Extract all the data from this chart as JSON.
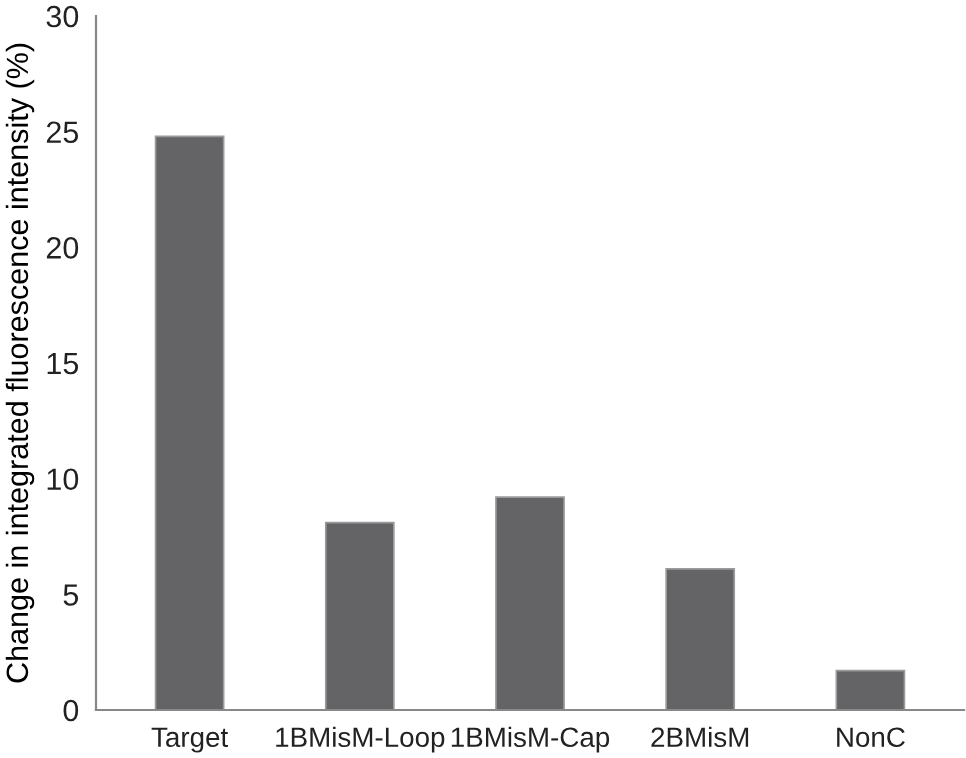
{
  "chart_data": {
    "type": "bar",
    "ylabel": "Change in integrated fluorescence intensity (%)",
    "categories": [
      "Target",
      "1BMisM-Loop",
      "1BMisM-Cap",
      "2BMisM",
      "NonC"
    ],
    "values": [
      24.8,
      8.1,
      9.2,
      6.1,
      1.7
    ],
    "color": "#646466",
    "ylim": [
      0,
      30
    ],
    "yticks": [
      0,
      5,
      10,
      15,
      20,
      25,
      30
    ],
    "grid": false
  }
}
